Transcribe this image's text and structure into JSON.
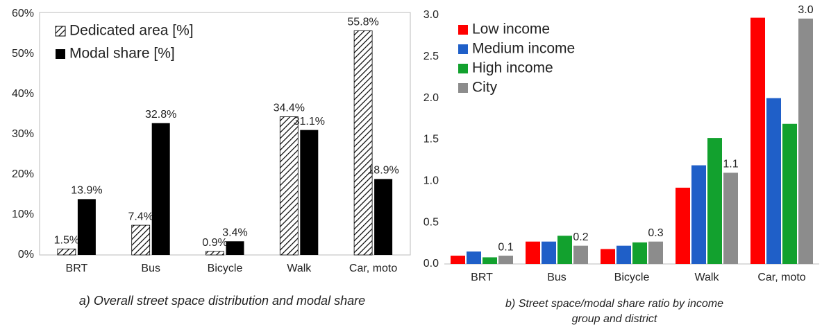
{
  "chart_data": [
    {
      "type": "bar",
      "caption": "a) Overall street space distribution and modal share",
      "categories": [
        "BRT",
        "Bus",
        "Bicycle",
        "Walk",
        "Car, moto"
      ],
      "series": [
        {
          "name": "Dedicated area [%]",
          "color": "#000000",
          "hatch": true,
          "values": [
            1.5,
            7.4,
            0.9,
            34.4,
            55.8
          ],
          "value_labels": [
            "1.5%",
            "7.4%",
            "0.9%",
            "34.4%",
            "55.8%"
          ]
        },
        {
          "name": "Modal share [%]",
          "color": "#000000",
          "values": [
            13.9,
            32.8,
            3.4,
            31.1,
            18.9
          ],
          "value_labels": [
            "13.9%",
            "32.8%",
            "3.4%",
            "31.1%",
            "18.9%"
          ]
        }
      ],
      "ylim": [
        0,
        60
      ],
      "yticks": [
        {
          "value": 0,
          "label": "0%"
        },
        {
          "value": 10,
          "label": "10%"
        },
        {
          "value": 20,
          "label": "20%"
        },
        {
          "value": 30,
          "label": "30%"
        },
        {
          "value": 40,
          "label": "40%"
        },
        {
          "value": 50,
          "label": "50%"
        },
        {
          "value": 60,
          "label": "60%"
        }
      ],
      "grid": false,
      "legend": "upper left"
    },
    {
      "type": "bar",
      "caption": "b) Street space/modal share ratio by income group and district",
      "categories": [
        "BRT",
        "Bus",
        "Bicycle",
        "Walk",
        "Car, moto"
      ],
      "series": [
        {
          "name": "Low income",
          "color": "#ff0000",
          "values": [
            0.1,
            0.27,
            0.18,
            0.92,
            2.97
          ]
        },
        {
          "name": "Medium income",
          "color": "#1f5fc8",
          "values": [
            0.15,
            0.27,
            0.22,
            1.19,
            2.0
          ]
        },
        {
          "name": "High income",
          "color": "#12a12e",
          "values": [
            0.08,
            0.34,
            0.26,
            1.52,
            1.69
          ]
        },
        {
          "name": "City",
          "color": "#8c8c8c",
          "values": [
            0.1,
            0.22,
            0.27,
            1.1,
            2.96
          ],
          "value_labels": [
            "0.1",
            "0.2",
            "0.3",
            "1.1",
            "3.0"
          ]
        }
      ],
      "ylim": [
        0,
        3
      ],
      "yticks": [
        {
          "value": 0,
          "label": "0.0"
        },
        0.5,
        {
          "value": 1,
          "label": "1.0"
        },
        1.5,
        {
          "value": 2,
          "label": "2.0"
        },
        2.5,
        {
          "value": 3,
          "label": "3.0"
        }
      ],
      "grid": false,
      "legend": "upper left"
    }
  ]
}
